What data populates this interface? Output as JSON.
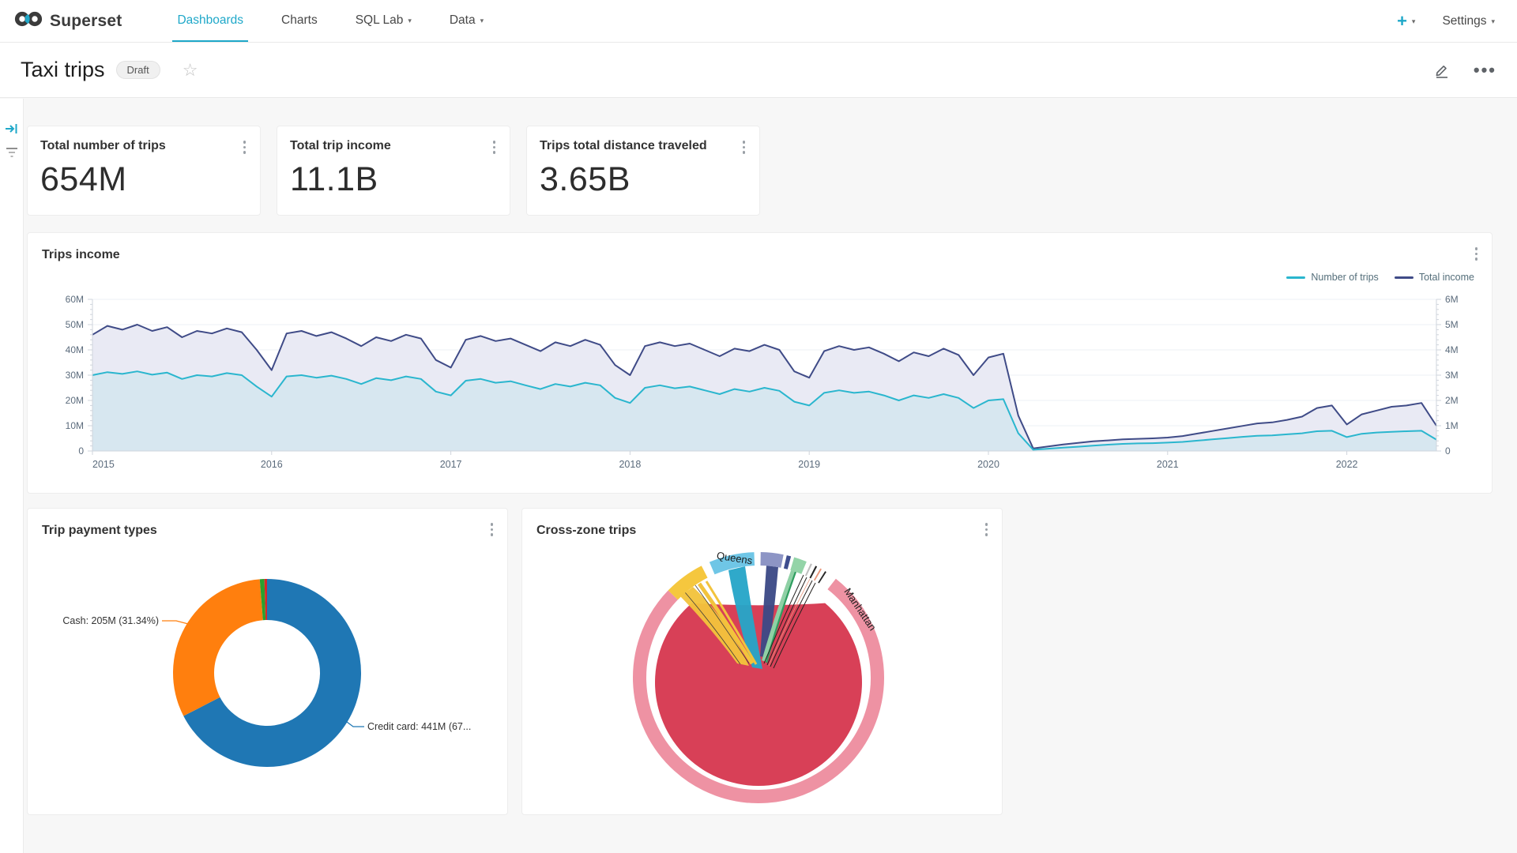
{
  "navbar": {
    "brand": "Superset",
    "items": [
      {
        "label": "Dashboards",
        "active": true,
        "caret": false
      },
      {
        "label": "Charts",
        "active": false,
        "caret": false
      },
      {
        "label": "SQL Lab",
        "active": false,
        "caret": true
      },
      {
        "label": "Data",
        "active": false,
        "caret": true
      }
    ],
    "plus_label": "+",
    "settings_label": "Settings"
  },
  "titlebar": {
    "title": "Taxi trips",
    "badge": "Draft"
  },
  "kpis": [
    {
      "title": "Total number of trips",
      "value": "654M"
    },
    {
      "title": "Total trip income",
      "value": "11.1B"
    },
    {
      "title": "Trips total distance traveled",
      "value": "3.65B"
    }
  ],
  "panels": {
    "income": {
      "title": "Trips income"
    },
    "payment": {
      "title": "Trip payment types"
    },
    "chord": {
      "title": "Cross-zone trips"
    }
  },
  "colors": {
    "accent": "#1fa8c9",
    "trips_line": "#2ab6ce",
    "trips_fill": "#d7e7f0",
    "income_line": "#3f4b87",
    "income_fill": "#e9eaf4",
    "grid": "#eef0f5",
    "axis": "#cfd4dc",
    "axis_text": "#5b6b7c"
  },
  "chart_data": [
    {
      "type": "line",
      "title": "Trips income",
      "grid": true,
      "legend_position": "top-right",
      "x_tick_labels": [
        "2015",
        "2016",
        "2017",
        "2018",
        "2019",
        "2020",
        "2021",
        "2022"
      ],
      "x_tick_indices": [
        0,
        12,
        24,
        36,
        48,
        60,
        72,
        84
      ],
      "points_span": "monthly 2015-01 to 2022-07",
      "left_axis": {
        "ticks": [
          "60M",
          "50M",
          "40M",
          "30M",
          "20M",
          "10M",
          "0"
        ],
        "max": 60,
        "min": 0
      },
      "right_axis": {
        "ticks": [
          "6M",
          "5M",
          "4M",
          "3M",
          "2M",
          "1M",
          "0"
        ],
        "max": 6,
        "min": 0
      },
      "series": [
        {
          "name": "Total income",
          "axis": "left",
          "color": "#3f4b87",
          "fill": "#e9eaf4",
          "values": [
            46,
            49.5,
            48,
            50,
            47.5,
            49,
            45,
            47.5,
            46.5,
            48.5,
            47,
            40,
            32,
            46.5,
            47.5,
            45.5,
            47,
            44.5,
            41.5,
            45,
            43.5,
            46,
            44.5,
            36,
            33,
            44,
            45.5,
            43.5,
            44.5,
            42,
            39.5,
            43,
            41.5,
            44,
            42,
            34,
            30,
            41.5,
            43,
            41.5,
            42.5,
            40,
            37.5,
            40.5,
            39.5,
            42,
            40,
            31.5,
            29,
            39.5,
            41.5,
            40,
            41,
            38.5,
            35.5,
            39,
            37.5,
            40.5,
            38,
            30,
            37,
            38.5,
            14,
            1,
            1.8,
            2.6,
            3.2,
            3.8,
            4.2,
            4.6,
            4.8,
            5,
            5.3,
            5.9,
            6.9,
            7.9,
            8.9,
            9.9,
            10.9,
            11.3,
            12.3,
            13.6,
            17,
            18,
            10.5,
            14.5,
            16,
            17.5,
            18,
            19,
            10
          ]
        },
        {
          "name": "Number of trips",
          "axis": "right",
          "color": "#2ab6ce",
          "fill": "#d7e7f0",
          "values": [
            3,
            3.12,
            3.05,
            3.15,
            3.02,
            3.1,
            2.85,
            3,
            2.95,
            3.08,
            3,
            2.55,
            2.15,
            2.95,
            3,
            2.9,
            2.98,
            2.85,
            2.65,
            2.88,
            2.8,
            2.95,
            2.85,
            2.35,
            2.2,
            2.78,
            2.85,
            2.7,
            2.76,
            2.6,
            2.45,
            2.65,
            2.55,
            2.7,
            2.6,
            2.1,
            1.9,
            2.5,
            2.6,
            2.48,
            2.55,
            2.4,
            2.25,
            2.45,
            2.35,
            2.5,
            2.38,
            1.95,
            1.8,
            2.3,
            2.4,
            2.3,
            2.35,
            2.2,
            2,
            2.2,
            2.1,
            2.25,
            2.1,
            1.7,
            2,
            2.05,
            0.7,
            0.05,
            0.09,
            0.13,
            0.17,
            0.21,
            0.25,
            0.28,
            0.3,
            0.31,
            0.33,
            0.36,
            0.41,
            0.46,
            0.51,
            0.56,
            0.6,
            0.62,
            0.66,
            0.7,
            0.78,
            0.8,
            0.55,
            0.68,
            0.73,
            0.76,
            0.78,
            0.8,
            0.45
          ]
        }
      ],
      "legend": [
        {
          "label": "Number of trips",
          "color": "#2ab6ce"
        },
        {
          "label": "Total income",
          "color": "#3f4b87"
        }
      ]
    },
    {
      "type": "pie",
      "title": "Trip payment types",
      "donut": true,
      "slices": [
        {
          "label": "Credit card",
          "pct": 67.42,
          "color": "#1f77b4"
        },
        {
          "label": "Cash",
          "pct": 31.34,
          "color": "#ff7f0e"
        },
        {
          "label": "",
          "pct": 0.79,
          "color": "#2ca02c"
        },
        {
          "label": "",
          "pct": 0.45,
          "color": "#d62728"
        }
      ],
      "callouts": {
        "cash": "Cash: 205M (31.34%)",
        "credit": "Credit card: 441M (67..."
      }
    },
    {
      "type": "chord",
      "title": "Cross-zone trips",
      "visible_labels": {
        "queens": "Queens",
        "manhattan": "Manhattan"
      },
      "arcs": [
        {
          "name": "Manhattan",
          "color": "#ee92a3",
          "start_deg": 38,
          "end_deg": 314
        },
        {
          "name": "",
          "color": "#f5c73e",
          "start_deg": -46,
          "end_deg": -27
        },
        {
          "name": "Queens",
          "color": "#6fc6e6",
          "start_deg": -23,
          "end_deg": -2
        },
        {
          "name": "",
          "color": "#8d95c5",
          "start_deg": 1,
          "end_deg": 11.5
        },
        {
          "name": "",
          "color": "#3e4d8e",
          "start_deg": 13,
          "end_deg": 15
        },
        {
          "name": "",
          "color": "#93d4a8",
          "start_deg": 16.5,
          "end_deg": 22.5
        },
        {
          "name": "",
          "color": "#bfbfbf",
          "start_deg": 24.5,
          "end_deg": 25.3
        },
        {
          "name": "",
          "color": "#262626",
          "start_deg": 27,
          "end_deg": 27.8
        },
        {
          "name": "",
          "color": "#e9967a",
          "start_deg": 29.5,
          "end_deg": 30.2
        },
        {
          "name": "",
          "color": "#262626",
          "start_deg": 32,
          "end_deg": 32.7
        }
      ],
      "self_link_color": "#d84057"
    }
  ]
}
